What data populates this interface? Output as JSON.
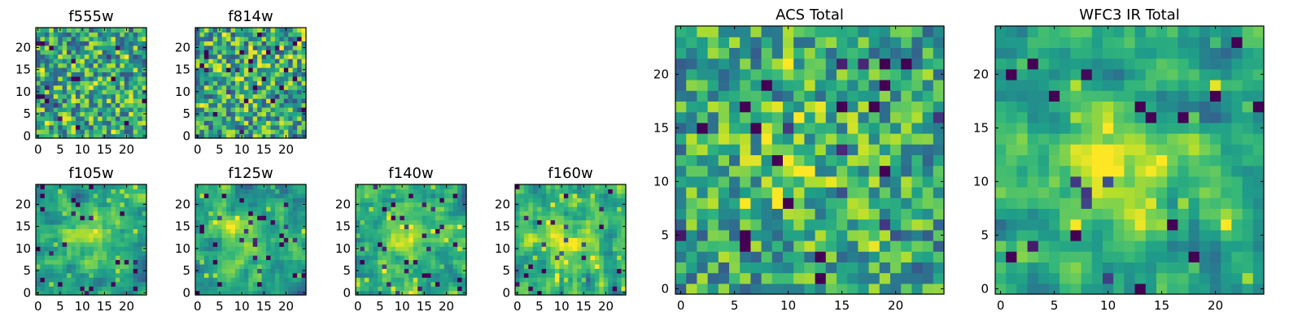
{
  "chart_data": {
    "type": "heatmap",
    "colormap": "viridis",
    "grid_size": 25,
    "panels": [
      {
        "id": "f555w",
        "title": "f555w",
        "xticks": [
          0,
          5,
          10,
          15,
          20
        ],
        "yticks": [
          0,
          5,
          10,
          15,
          20
        ],
        "seed": 11,
        "noise": 0.7,
        "smooth": 0,
        "baseline": 0.6,
        "blob": 0.05
      },
      {
        "id": "f814w",
        "title": "f814w",
        "xticks": [
          0,
          5,
          10,
          15,
          20
        ],
        "yticks": [
          0,
          5,
          10,
          15,
          20
        ],
        "seed": 23,
        "noise": 0.7,
        "smooth": 0,
        "baseline": 0.6,
        "blob": 0.05
      },
      {
        "id": "f105w",
        "title": "f105w",
        "xticks": [
          0,
          5,
          10,
          15,
          20
        ],
        "yticks": [
          0,
          5,
          10,
          15,
          20
        ],
        "seed": 37,
        "noise": 0.6,
        "smooth": 1,
        "baseline": 0.55,
        "blob": 0.25
      },
      {
        "id": "f125w",
        "title": "f125w",
        "xticks": [
          0,
          5,
          10,
          15,
          20
        ],
        "yticks": [
          0,
          5,
          10,
          15,
          20
        ],
        "seed": 41,
        "noise": 0.6,
        "smooth": 1,
        "baseline": 0.55,
        "blob": 0.25
      },
      {
        "id": "f140w",
        "title": "f140w",
        "xticks": [
          0,
          5,
          10,
          15,
          20
        ],
        "yticks": [
          0,
          5,
          10,
          15,
          20
        ],
        "seed": 53,
        "noise": 0.6,
        "smooth": 1,
        "baseline": 0.6,
        "blob": 0.2
      },
      {
        "id": "f160w",
        "title": "f160w",
        "xticks": [
          0,
          5,
          10,
          15,
          20
        ],
        "yticks": [
          0,
          5,
          10,
          15,
          20
        ],
        "seed": 67,
        "noise": 0.6,
        "smooth": 1,
        "baseline": 0.6,
        "blob": 0.2
      },
      {
        "id": "acs_total",
        "title": "ACS Total",
        "xticks": [
          0,
          5,
          10,
          15,
          20
        ],
        "yticks": [
          0,
          5,
          10,
          15,
          20
        ],
        "seed": 79,
        "noise": 0.6,
        "smooth": 0,
        "baseline": 0.58,
        "blob": 0.15
      },
      {
        "id": "wfc3_ir_total",
        "title": "WFC3 IR Total",
        "xticks": [
          0,
          5,
          10,
          15,
          20
        ],
        "yticks": [
          0,
          5,
          10,
          15,
          20
        ],
        "seed": 97,
        "noise": 0.55,
        "smooth": 1,
        "baseline": 0.55,
        "blob": 0.35
      }
    ],
    "xlabel": "",
    "ylabel": "",
    "legend": "none",
    "grid": false
  }
}
